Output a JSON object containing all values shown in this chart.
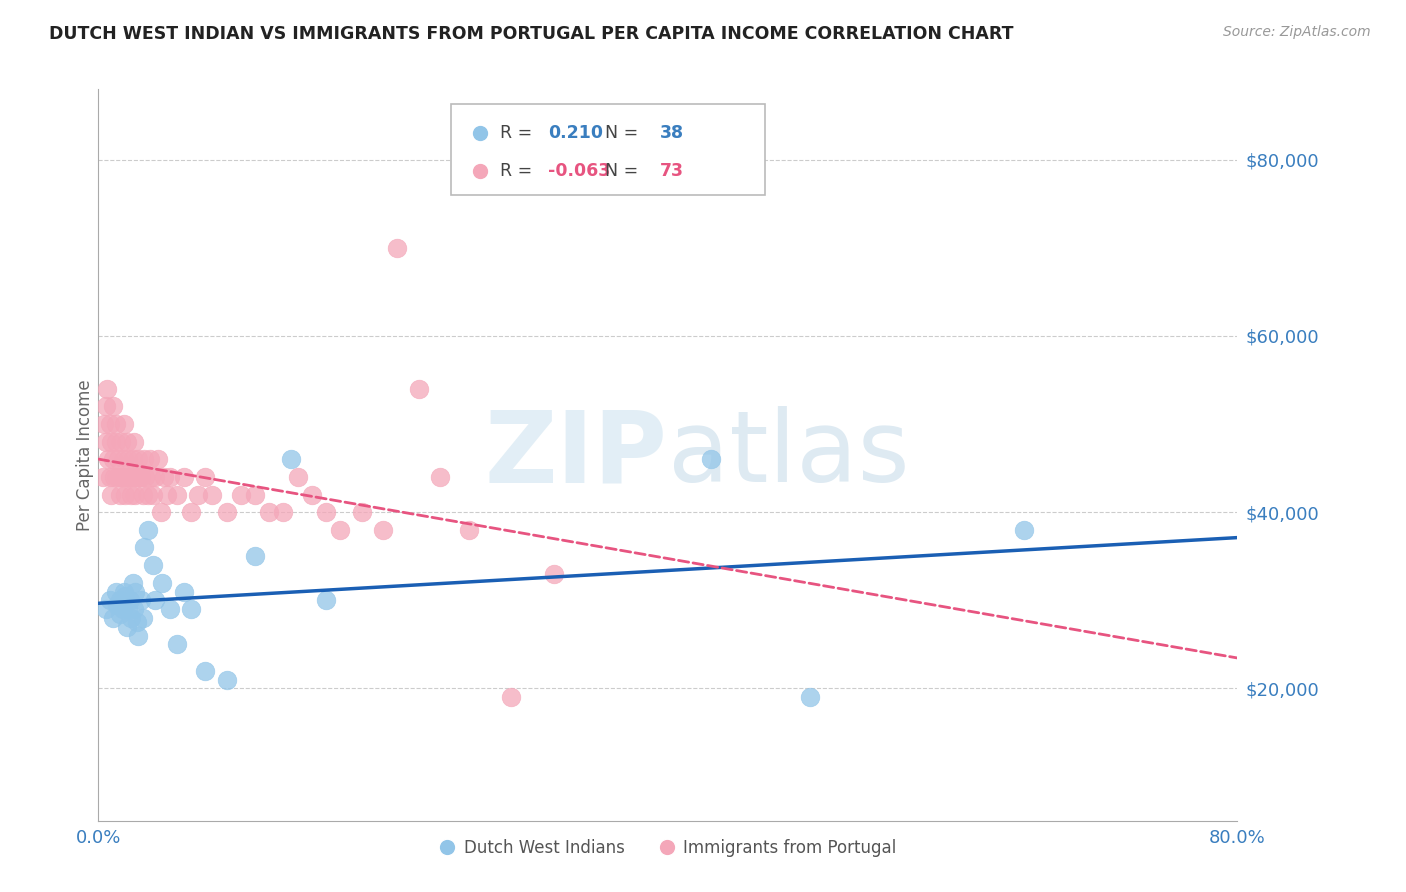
{
  "title": "DUTCH WEST INDIAN VS IMMIGRANTS FROM PORTUGAL PER CAPITA INCOME CORRELATION CHART",
  "source": "Source: ZipAtlas.com",
  "ylabel": "Per Capita Income",
  "ytick_labels": [
    "$20,000",
    "$40,000",
    "$60,000",
    "$80,000"
  ],
  "ytick_values": [
    20000,
    40000,
    60000,
    80000
  ],
  "ylim": [
    5000,
    88000
  ],
  "xlim": [
    0.0,
    0.8
  ],
  "watermark_zip": "ZIP",
  "watermark_atlas": "atlas",
  "legend_blue_r": "0.210",
  "legend_blue_n": "38",
  "legend_pink_r": "-0.063",
  "legend_pink_n": "73",
  "legend_label_blue": "Dutch West Indians",
  "legend_label_pink": "Immigrants from Portugal",
  "blue_color": "#92c5e8",
  "pink_color": "#f4a7b9",
  "blue_line_color": "#1a5fb4",
  "pink_line_color": "#e75480",
  "title_color": "#222222",
  "axis_label_color": "#3a7ebf",
  "blue_scatter_x": [
    0.005,
    0.008,
    0.01,
    0.012,
    0.013,
    0.015,
    0.015,
    0.017,
    0.018,
    0.019,
    0.02,
    0.021,
    0.022,
    0.023,
    0.024,
    0.025,
    0.026,
    0.027,
    0.028,
    0.03,
    0.031,
    0.032,
    0.035,
    0.038,
    0.04,
    0.045,
    0.05,
    0.055,
    0.06,
    0.065,
    0.075,
    0.09,
    0.11,
    0.135,
    0.16,
    0.43,
    0.5,
    0.65
  ],
  "blue_scatter_y": [
    29000,
    30000,
    28000,
    31000,
    29500,
    30000,
    28500,
    29000,
    31000,
    30500,
    27000,
    29000,
    30000,
    28000,
    32000,
    29000,
    31000,
    27500,
    26000,
    30000,
    28000,
    36000,
    38000,
    34000,
    30000,
    32000,
    29000,
    25000,
    31000,
    29000,
    22000,
    21000,
    35000,
    46000,
    30000,
    46000,
    19000,
    38000
  ],
  "pink_scatter_x": [
    0.003,
    0.004,
    0.005,
    0.005,
    0.006,
    0.007,
    0.008,
    0.008,
    0.009,
    0.009,
    0.01,
    0.01,
    0.011,
    0.012,
    0.012,
    0.013,
    0.014,
    0.015,
    0.015,
    0.016,
    0.017,
    0.018,
    0.018,
    0.019,
    0.02,
    0.02,
    0.021,
    0.022,
    0.023,
    0.024,
    0.025,
    0.025,
    0.026,
    0.027,
    0.028,
    0.029,
    0.03,
    0.031,
    0.032,
    0.033,
    0.035,
    0.036,
    0.037,
    0.038,
    0.04,
    0.042,
    0.044,
    0.046,
    0.048,
    0.05,
    0.055,
    0.06,
    0.065,
    0.07,
    0.075,
    0.08,
    0.09,
    0.1,
    0.11,
    0.12,
    0.13,
    0.14,
    0.15,
    0.16,
    0.17,
    0.185,
    0.2,
    0.21,
    0.225,
    0.24,
    0.26,
    0.29,
    0.32
  ],
  "pink_scatter_y": [
    44000,
    50000,
    48000,
    52000,
    54000,
    46000,
    44000,
    50000,
    48000,
    42000,
    46000,
    52000,
    44000,
    48000,
    50000,
    44000,
    46000,
    42000,
    44000,
    48000,
    44000,
    46000,
    50000,
    42000,
    44000,
    48000,
    46000,
    44000,
    42000,
    46000,
    44000,
    48000,
    42000,
    44000,
    46000,
    44000,
    44000,
    42000,
    46000,
    44000,
    42000,
    46000,
    44000,
    42000,
    44000,
    46000,
    40000,
    44000,
    42000,
    44000,
    42000,
    44000,
    40000,
    42000,
    44000,
    42000,
    40000,
    42000,
    42000,
    40000,
    40000,
    44000,
    42000,
    40000,
    38000,
    40000,
    38000,
    70000,
    54000,
    44000,
    38000,
    19000,
    33000
  ]
}
